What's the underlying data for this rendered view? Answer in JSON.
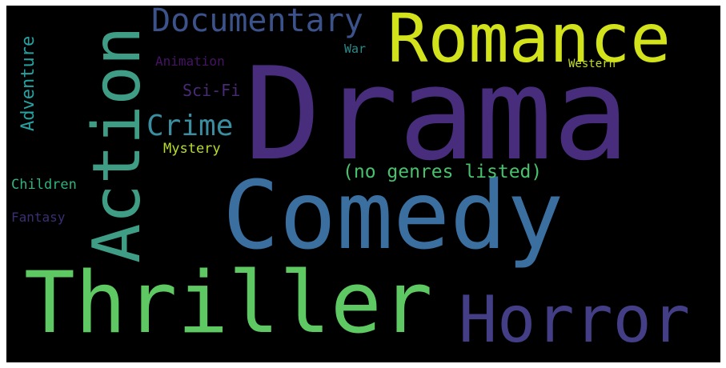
{
  "wordcloud": {
    "background": "#000000",
    "words": [
      {
        "id": "drama",
        "text": "Drama",
        "color": "#472d7b"
      },
      {
        "id": "comedy",
        "text": "Comedy",
        "color": "#3b6fa0"
      },
      {
        "id": "thriller",
        "text": "Thriller",
        "color": "#5ec962"
      },
      {
        "id": "action",
        "text": "Action",
        "color": "#3f9c85"
      },
      {
        "id": "romance",
        "text": "Romance",
        "color": "#d2e21b"
      },
      {
        "id": "horror",
        "text": "Horror",
        "color": "#433e85"
      },
      {
        "id": "documentary",
        "text": "Documentary",
        "color": "#3b528b"
      },
      {
        "id": "crime",
        "text": "Crime",
        "color": "#3a8ea0"
      },
      {
        "id": "no-genres",
        "text": "(no genres listed)",
        "color": "#48c16e"
      },
      {
        "id": "adventure",
        "text": "Adventure",
        "color": "#26a1a0"
      },
      {
        "id": "sci-fi",
        "text": "Sci-Fi",
        "color": "#4a2a77"
      },
      {
        "id": "animation",
        "text": "Animation",
        "color": "#471365"
      },
      {
        "id": "mystery",
        "text": "Mystery",
        "color": "#b8de29"
      },
      {
        "id": "children",
        "text": "Children",
        "color": "#2fb47c"
      },
      {
        "id": "fantasy",
        "text": "Fantasy",
        "color": "#3a2f73"
      },
      {
        "id": "war",
        "text": "War",
        "color": "#2a8a8b"
      },
      {
        "id": "western",
        "text": "Western",
        "color": "#c4dd26"
      }
    ]
  }
}
